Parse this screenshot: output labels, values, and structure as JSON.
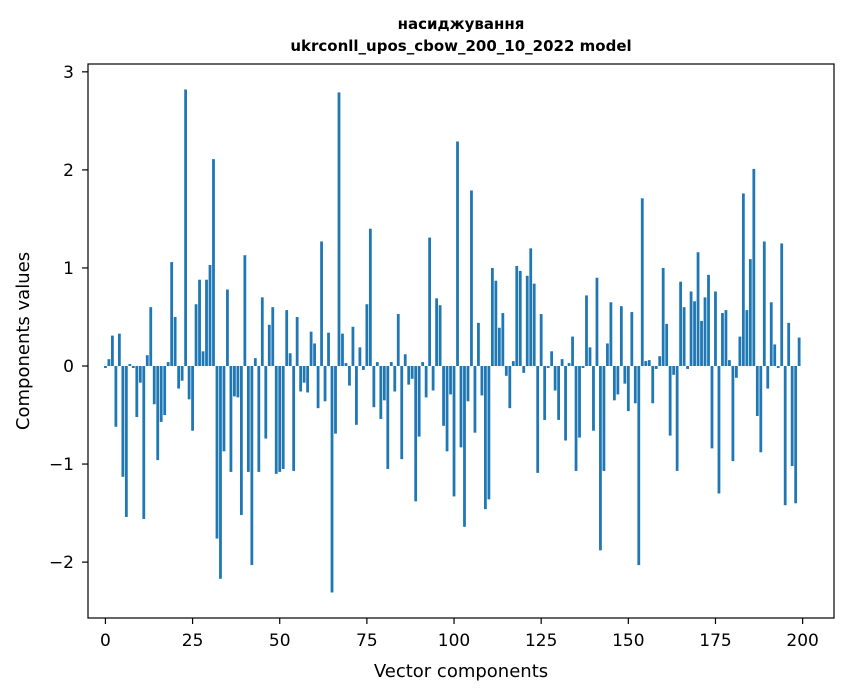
{
  "chart_data": {
    "type": "bar",
    "title": "насиджування",
    "subtitle": "ukrconll_upos_cbow_200_10_2022 model",
    "xlabel": "Vector components",
    "ylabel": "Components values",
    "xlim": [
      -5,
      209
    ],
    "ylim": [
      -2.57,
      3.08
    ],
    "xticks": [
      0,
      25,
      50,
      75,
      100,
      125,
      150,
      175,
      200
    ],
    "xtick_labels": [
      "0",
      "25",
      "50",
      "75",
      "100",
      "125",
      "150",
      "175",
      "200"
    ],
    "yticks": [
      -2,
      -1,
      0,
      1,
      2,
      3
    ],
    "ytick_labels": [
      "−2",
      "−1",
      "0",
      "1",
      "2",
      "3"
    ],
    "bar_color": "#1f77b4",
    "grid": false,
    "x_start": 0,
    "values": [
      -0.02,
      0.07,
      0.31,
      -0.62,
      0.33,
      -1.13,
      -1.54,
      0.02,
      -0.02,
      -0.52,
      -0.17,
      -1.56,
      0.11,
      0.6,
      -0.39,
      -0.96,
      -0.57,
      -0.5,
      0.04,
      1.06,
      0.5,
      -0.23,
      -0.15,
      2.82,
      -0.34,
      -0.66,
      0.63,
      0.88,
      0.15,
      0.88,
      1.03,
      2.11,
      -1.76,
      -2.17,
      -0.87,
      0.78,
      -1.08,
      -0.31,
      -0.32,
      -1.52,
      1.13,
      -1.08,
      -2.03,
      0.08,
      -1.08,
      0.7,
      -0.74,
      0.42,
      0.6,
      -1.1,
      -1.08,
      -1.05,
      0.57,
      0.13,
      -1.07,
      0.5,
      -0.26,
      -0.17,
      -0.27,
      0.35,
      0.23,
      -0.43,
      1.27,
      -0.36,
      0.34,
      -2.31,
      -0.69,
      2.79,
      0.33,
      0.03,
      -0.2,
      0.4,
      -0.6,
      0.19,
      -0.04,
      0.63,
      1.4,
      -0.42,
      0.04,
      -0.54,
      -0.35,
      -1.05,
      0.04,
      -0.26,
      0.53,
      -0.95,
      0.12,
      -0.19,
      -0.13,
      -1.38,
      -0.72,
      0.04,
      -0.32,
      1.31,
      -0.25,
      0.69,
      0.62,
      -0.61,
      -0.87,
      -0.29,
      -1.33,
      2.29,
      -0.83,
      -1.64,
      -0.36,
      1.79,
      -0.68,
      0.44,
      -0.3,
      -1.46,
      -1.36,
      1.0,
      0.87,
      0.39,
      0.54,
      -0.1,
      -0.43,
      0.05,
      1.02,
      0.97,
      -0.07,
      0.92,
      1.2,
      0.84,
      -1.09,
      0.53,
      -0.55,
      -0.02,
      0.15,
      -0.25,
      -0.55,
      0.07,
      -0.76,
      0.03,
      0.3,
      -1.07,
      -0.73,
      -0.02,
      0.72,
      0.19,
      -0.66,
      0.9,
      -1.88,
      -1.07,
      0.23,
      0.65,
      -0.35,
      -0.29,
      0.61,
      -0.18,
      -0.46,
      0.55,
      -0.38,
      -2.03,
      1.71,
      0.05,
      0.06,
      -0.38,
      -0.03,
      0.1,
      1.0,
      0.43,
      -0.71,
      -0.09,
      -1.07,
      0.86,
      0.6,
      -0.03,
      0.76,
      0.66,
      1.16,
      0.46,
      0.7,
      0.93,
      -0.84,
      0.76,
      -1.3,
      0.54,
      0.57,
      0.06,
      -0.97,
      -0.12,
      0.3,
      1.76,
      0.57,
      1.09,
      2.01,
      -0.51,
      -0.88,
      1.27,
      -0.23,
      0.65,
      0.22,
      -0.02,
      1.25,
      -1.42,
      0.44,
      -1.02,
      -1.4,
      0.29
    ]
  }
}
